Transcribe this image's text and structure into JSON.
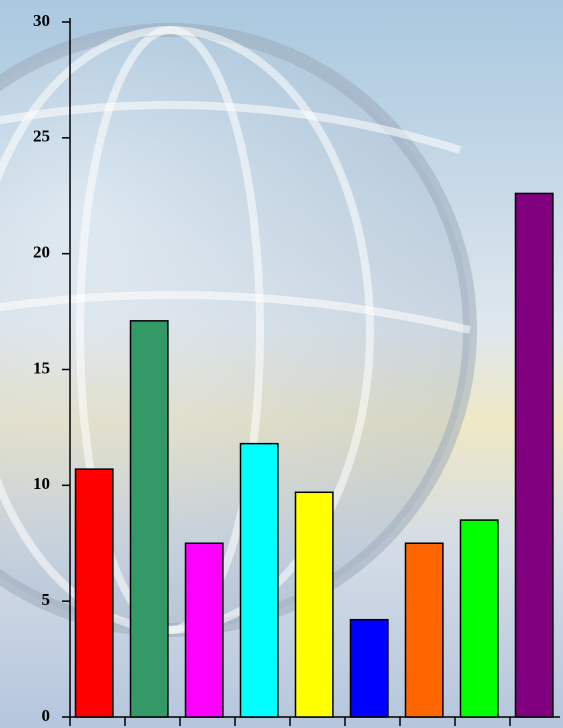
{
  "chart_data": {
    "type": "bar",
    "categories": [
      null,
      null,
      null,
      null,
      null,
      null,
      null,
      null,
      null
    ],
    "values": [
      10.7,
      17.1,
      7.5,
      11.8,
      9.7,
      4.2,
      7.5,
      8.5,
      22.6
    ],
    "colors": [
      "#ff0000",
      "#339966",
      "#ff00ff",
      "#00ffff",
      "#ffff00",
      "#0000ff",
      "#ff6600",
      "#00ff00",
      "#800080"
    ],
    "ylim": [
      0,
      30
    ],
    "yticks": [
      0,
      5,
      10,
      15,
      20,
      25,
      30
    ]
  }
}
